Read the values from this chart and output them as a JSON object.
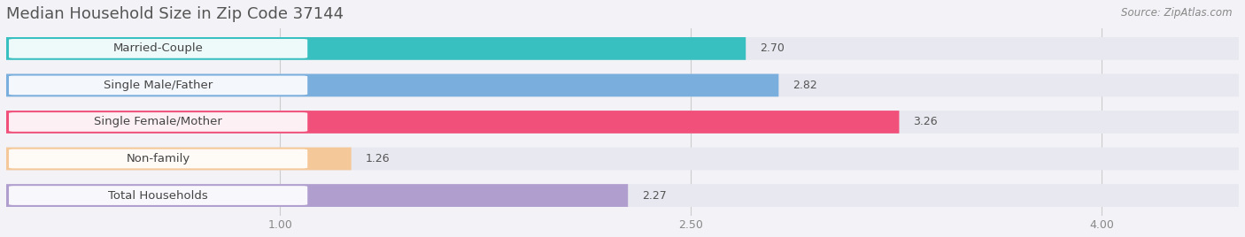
{
  "title": "Median Household Size in Zip Code 37144",
  "source": "Source: ZipAtlas.com",
  "categories": [
    "Married-Couple",
    "Single Male/Father",
    "Single Female/Mother",
    "Non-family",
    "Total Households"
  ],
  "values": [
    2.7,
    2.82,
    3.26,
    1.26,
    2.27
  ],
  "bar_colors": [
    "#38bfbf",
    "#7aaedd",
    "#f0507a",
    "#f5c899",
    "#b09ecf"
  ],
  "value_colors": [
    "#555555",
    "#ffffff",
    "#ffffff",
    "#666666",
    "#555555"
  ],
  "xlim_data": [
    0,
    4.5
  ],
  "xlim_display": [
    0,
    4.5
  ],
  "xticks": [
    1.0,
    2.5,
    4.0
  ],
  "bar_height": 0.62,
  "background_color": "#f2f2f7",
  "track_color": "#e8e8ee",
  "title_fontsize": 13,
  "label_fontsize": 9.5,
  "value_fontsize": 9
}
